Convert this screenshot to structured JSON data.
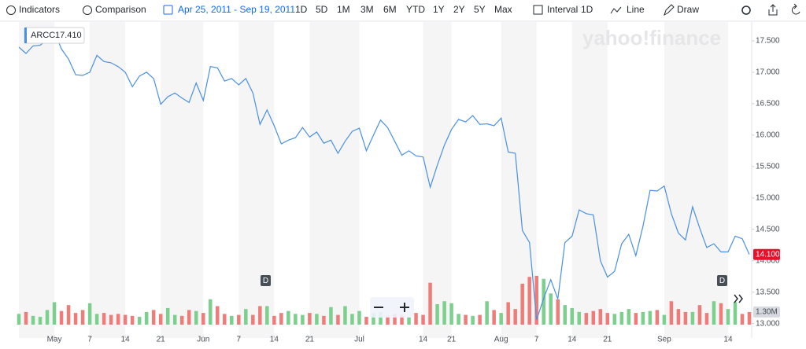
{
  "toolbar": {
    "indicators": "Indicators",
    "comparison": "Comparison",
    "date_range": "Apr 25, 2011 - Sep 19, 2011",
    "ranges": [
      "1D",
      "5D",
      "1M",
      "3M",
      "6M",
      "YTD",
      "1Y",
      "2Y",
      "5Y",
      "Max"
    ],
    "interval": "Interval",
    "interval_value": "1D",
    "chart_type": "Line",
    "draw": "Draw"
  },
  "watermark": "yahoo!finance",
  "tooltip": {
    "ticker": "ARCC",
    "value": "17.410"
  },
  "markers": [
    "D",
    "D"
  ],
  "chart_data": {
    "type": "line",
    "color": "#4a90e2",
    "values": [
      17.4,
      17.3,
      17.42,
      17.43,
      17.52,
      17.65,
      17.37,
      17.21,
      16.96,
      16.95,
      17.0,
      17.27,
      17.17,
      17.15,
      17.09,
      17.0,
      16.77,
      16.94,
      17.0,
      16.9,
      16.49,
      16.61,
      16.67,
      16.59,
      16.52,
      16.83,
      16.55,
      17.09,
      17.07,
      16.86,
      16.9,
      16.8,
      16.9,
      16.67,
      16.17,
      16.4,
      16.15,
      15.86,
      15.92,
      15.96,
      16.12,
      15.97,
      16.05,
      15.87,
      15.92,
      15.71,
      15.9,
      16.06,
      16.11,
      15.75,
      16.0,
      16.24,
      16.12,
      15.9,
      15.68,
      15.75,
      15.67,
      15.65,
      15.17,
      15.52,
      15.84,
      16.09,
      16.25,
      16.21,
      16.31,
      16.17,
      16.18,
      16.15,
      16.27,
      15.73,
      15.71,
      14.48,
      14.29,
      13.06,
      13.4,
      13.7,
      13.39,
      14.29,
      14.39,
      14.81,
      14.75,
      14.73,
      14.0,
      13.74,
      13.83,
      14.27,
      14.42,
      14.08,
      14.55,
      15.12,
      15.11,
      15.19,
      14.75,
      14.44,
      14.33,
      14.86,
      14.52,
      14.21,
      14.27,
      14.14,
      14.14,
      14.39,
      14.35,
      14.1
    ],
    "last_label": "14.100",
    "ylim": [
      12.77,
      17.8
    ],
    "yticks": [
      {
        "value": 17.5,
        "label": "17.500"
      },
      {
        "value": 17.0,
        "label": "17.000"
      },
      {
        "value": 16.5,
        "label": "16.500"
      },
      {
        "value": 16.0,
        "label": "16.000"
      },
      {
        "value": 15.5,
        "label": "15.500"
      },
      {
        "value": 15.0,
        "label": "15.000"
      },
      {
        "value": 14.5,
        "label": "14.500"
      },
      {
        "value": 14.0,
        "label": "14.000"
      },
      {
        "value": 13.5,
        "label": "13.500"
      },
      {
        "value": 13.0,
        "label": "13.000"
      }
    ],
    "xticks": [
      {
        "value": 5,
        "label": "May"
      },
      {
        "value": 10,
        "label": "7"
      },
      {
        "value": 15,
        "label": "14"
      },
      {
        "value": 20,
        "label": "21"
      },
      {
        "value": 26,
        "label": "Jun"
      },
      {
        "value": 31,
        "label": "7"
      },
      {
        "value": 36,
        "label": "14"
      },
      {
        "value": 41,
        "label": "21"
      },
      {
        "value": 48,
        "label": "Jul"
      },
      {
        "value": 57,
        "label": "14"
      },
      {
        "value": 61,
        "label": "21"
      },
      {
        "value": 68,
        "label": "Aug"
      },
      {
        "value": 73,
        "label": "7"
      },
      {
        "value": 78,
        "label": "14"
      },
      {
        "value": 83,
        "label": "21"
      },
      {
        "value": 91,
        "label": "Sep"
      },
      {
        "value": 100,
        "label": "14"
      }
    ],
    "volume": {
      "values": [
        1.1,
        1.3,
        0.9,
        0.8,
        1.5,
        2.3,
        1.4,
        2.0,
        1.2,
        1.5,
        2.2,
        1.1,
        1.2,
        1.0,
        1.1,
        1.0,
        0.9,
        0.8,
        1.3,
        1.5,
        1.1,
        1.7,
        1.0,
        0.9,
        1.5,
        1.4,
        1.2,
        2.6,
        1.9,
        1.1,
        0.9,
        1.0,
        1.6,
        1.0,
        1.9,
        1.9,
        0.9,
        1.2,
        1.4,
        1.1,
        1.0,
        1.2,
        1.1,
        0.9,
        1.8,
        1.0,
        1.9,
        1.1,
        1.4,
        0.8,
        1.2,
        1.3,
        0.9,
        1.1,
        1.0,
        0.8,
        1.2,
        1.0,
        4.3,
        2.1,
        2.4,
        2.2,
        1.1,
        1.0,
        0.9,
        1.0,
        2.4,
        1.5,
        1.2,
        2.3,
        1.6,
        4.2,
        4.9,
        5.0,
        4.7,
        3.2,
        2.6,
        2.0,
        1.7,
        1.3,
        1.2,
        1.4,
        1.6,
        1.2,
        1.1,
        1.3,
        1.6,
        1.2,
        1.3,
        1.4,
        1.5,
        1.0,
        2.4,
        1.6,
        1.3,
        1.3,
        2.0,
        1.2,
        2.4,
        2.2,
        1.6,
        2.3,
        1.1,
        1.3
      ],
      "last_label": "1.30M",
      "up_color": "#7ccf8c",
      "down_color": "#ee7d7a"
    },
    "grid": false
  }
}
